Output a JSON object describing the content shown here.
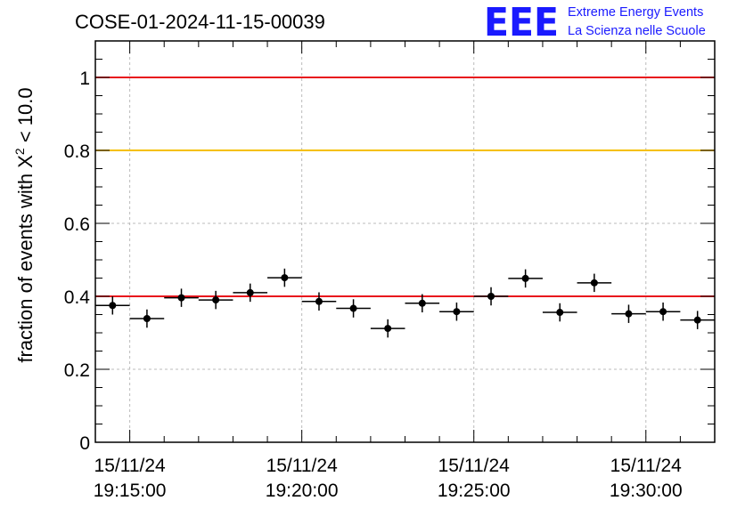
{
  "chart_data": {
    "type": "scatter",
    "title": "COSE-01-2024-11-15-00039",
    "logo_text": "EEE",
    "logo_lines": [
      "Extreme Energy Events",
      "La Scienza nelle Scuole"
    ],
    "ylabel_prefix": "fraction of events with X",
    "ylabel_sup": "2",
    "ylabel_suffix": " < 10.0",
    "ylim": [
      0,
      1.1
    ],
    "xlim_seconds": [
      0,
      1080
    ],
    "grid": true,
    "y_ticks": [
      {
        "value": 0,
        "label": "0"
      },
      {
        "value": 0.2,
        "label": "0.2"
      },
      {
        "value": 0.4,
        "label": "0.4"
      },
      {
        "value": 0.6,
        "label": "0.6"
      },
      {
        "value": 0.8,
        "label": "0.8"
      },
      {
        "value": 1,
        "label": "1"
      }
    ],
    "x_ticks": [
      {
        "t": 60,
        "date": "15/11/24",
        "time": "19:15:00"
      },
      {
        "t": 360,
        "date": "15/11/24",
        "time": "19:20:00"
      },
      {
        "t": 660,
        "date": "15/11/24",
        "time": "19:25:00"
      },
      {
        "t": 960,
        "date": "15/11/24",
        "time": "19:30:00"
      }
    ],
    "reference_lines": [
      {
        "y": 1.0,
        "color": "#e8141c"
      },
      {
        "y": 0.8,
        "color": "#f5c000"
      },
      {
        "y": 0.4,
        "color": "#e8141c"
      }
    ],
    "points": [
      {
        "t": 30,
        "y": 0.375,
        "err": 0.025
      },
      {
        "t": 90,
        "y": 0.339,
        "err": 0.025
      },
      {
        "t": 150,
        "y": 0.396,
        "err": 0.025
      },
      {
        "t": 210,
        "y": 0.39,
        "err": 0.025
      },
      {
        "t": 270,
        "y": 0.41,
        "err": 0.025
      },
      {
        "t": 330,
        "y": 0.451,
        "err": 0.025
      },
      {
        "t": 390,
        "y": 0.386,
        "err": 0.025
      },
      {
        "t": 450,
        "y": 0.367,
        "err": 0.025
      },
      {
        "t": 510,
        "y": 0.312,
        "err": 0.025
      },
      {
        "t": 570,
        "y": 0.381,
        "err": 0.025
      },
      {
        "t": 630,
        "y": 0.358,
        "err": 0.025
      },
      {
        "t": 690,
        "y": 0.4,
        "err": 0.025
      },
      {
        "t": 750,
        "y": 0.449,
        "err": 0.025
      },
      {
        "t": 810,
        "y": 0.356,
        "err": 0.025
      },
      {
        "t": 870,
        "y": 0.437,
        "err": 0.025
      },
      {
        "t": 930,
        "y": 0.352,
        "err": 0.025
      },
      {
        "t": 990,
        "y": 0.358,
        "err": 0.025
      },
      {
        "t": 1050,
        "y": 0.335,
        "err": 0.025
      }
    ],
    "bin_width_seconds": 60,
    "colors": {
      "marker": "#000000",
      "grid": "#bbbbbb"
    }
  }
}
